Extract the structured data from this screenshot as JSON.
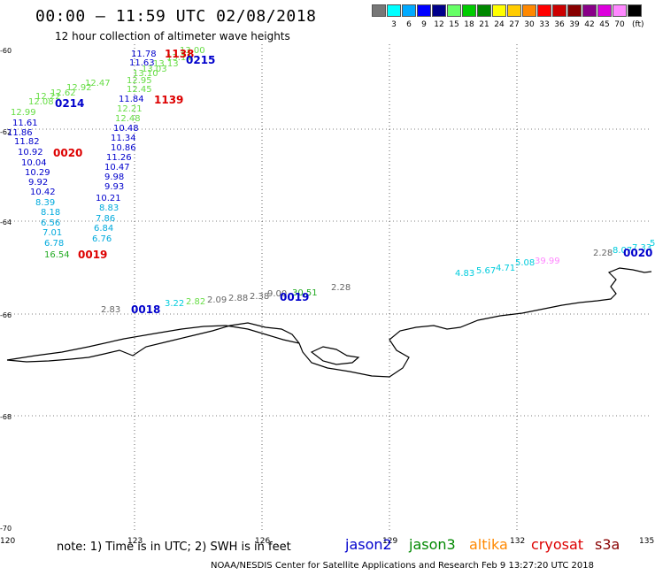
{
  "title": "00:00 – 11:59 UTC 02/08/2018",
  "subtitle": "12 hour collection of altimeter wave heights",
  "legend": {
    "swatches": [
      {
        "color": "#777777",
        "label": ""
      },
      {
        "color": "#00ffff",
        "label": "3"
      },
      {
        "color": "#00aaff",
        "label": "6"
      },
      {
        "color": "#0000ff",
        "label": "9"
      },
      {
        "color": "#00008b",
        "label": "12"
      },
      {
        "color": "#66ff66",
        "label": "15"
      },
      {
        "color": "#00cc00",
        "label": "18"
      },
      {
        "color": "#008800",
        "label": "21"
      },
      {
        "color": "#ffff00",
        "label": "24"
      },
      {
        "color": "#ffcc00",
        "label": "27"
      },
      {
        "color": "#ff8800",
        "label": "30"
      },
      {
        "color": "#ff0000",
        "label": "33"
      },
      {
        "color": "#cc0000",
        "label": "36"
      },
      {
        "color": "#880000",
        "label": "39"
      },
      {
        "color": "#880088",
        "label": "42"
      },
      {
        "color": "#dd00dd",
        "label": "45"
      },
      {
        "color": "#ff88ff",
        "label": "70"
      },
      {
        "color": "#000000",
        "label": ""
      }
    ],
    "unit": "(ft)"
  },
  "axes": {
    "y_labels": [
      "-60",
      "-62",
      "-64",
      "-66",
      "-68",
      "-70"
    ],
    "x_labels": [
      "120",
      "123",
      "126",
      "129",
      "132",
      "135"
    ]
  },
  "note": "note:  1) Time is in UTC;  2) SWH is in feet",
  "satellites": [
    {
      "name": "jason2",
      "color": "#0000cc"
    },
    {
      "name": "jason3",
      "color": "#008800"
    },
    {
      "name": "altika",
      "color": "#ff8800"
    },
    {
      "name": "cryosat",
      "color": "#dd0000"
    },
    {
      "name": "s3a",
      "color": "#880000"
    }
  ],
  "credit": "NOAA/NESDIS Center for Satellite Applications and Research    Feb  9 13:27:20 UTC 2018",
  "points": [
    {
      "t": "11.78",
      "c": "#0000cc"
    },
    {
      "t": "11.63",
      "c": "#0000cc"
    },
    {
      "t": "13.00",
      "c": "#66dd44"
    },
    {
      "t": "13.14",
      "c": "#66dd44"
    },
    {
      "t": "13.13",
      "c": "#66dd44"
    },
    {
      "t": "13.03",
      "c": "#66dd44"
    },
    {
      "t": "13.10",
      "c": "#66dd44"
    },
    {
      "t": "12.95",
      "c": "#66dd44"
    },
    {
      "t": "12.45",
      "c": "#66dd44"
    },
    {
      "t": "11.84",
      "c": "#0000cc"
    },
    {
      "t": "12.21",
      "c": "#66dd44"
    },
    {
      "t": "12.48",
      "c": "#66dd44"
    },
    {
      "t": "10.48",
      "c": "#0000cc"
    },
    {
      "t": "11.34",
      "c": "#0000cc"
    },
    {
      "t": "10.86",
      "c": "#0000cc"
    },
    {
      "t": "11.26",
      "c": "#0000cc"
    },
    {
      "t": "10.47",
      "c": "#0000cc"
    },
    {
      "t": "9.98",
      "c": "#0000cc"
    },
    {
      "t": "9.93",
      "c": "#0000cc"
    },
    {
      "t": "10.21",
      "c": "#0000cc"
    },
    {
      "t": "8.83",
      "c": "#00aadd"
    },
    {
      "t": "7.86",
      "c": "#00aadd"
    },
    {
      "t": "6.84",
      "c": "#00aadd"
    },
    {
      "t": "6.76",
      "c": "#00aadd"
    },
    {
      "t": "12.92",
      "c": "#66dd44"
    },
    {
      "t": "12.47",
      "c": "#66dd44"
    },
    {
      "t": "12.62",
      "c": "#66dd44"
    },
    {
      "t": "12.22",
      "c": "#66dd44"
    },
    {
      "t": "12.08",
      "c": "#66dd44"
    },
    {
      "t": "12.99",
      "c": "#66dd44"
    },
    {
      "t": "11.61",
      "c": "#0000cc"
    },
    {
      "t": "11.86",
      "c": "#0000cc"
    },
    {
      "t": "11.82",
      "c": "#0000cc"
    },
    {
      "t": "10.92",
      "c": "#0000cc"
    },
    {
      "t": "10.04",
      "c": "#0000cc"
    },
    {
      "t": "10.29",
      "c": "#0000cc"
    },
    {
      "t": "9.92",
      "c": "#0000cc"
    },
    {
      "t": "10.42",
      "c": "#0000cc"
    },
    {
      "t": "8.39",
      "c": "#00aadd"
    },
    {
      "t": "8.18",
      "c": "#00aadd"
    },
    {
      "t": "6.56",
      "c": "#00aadd"
    },
    {
      "t": "7.01",
      "c": "#00aadd"
    },
    {
      "t": "6.78",
      "c": "#00aadd"
    },
    {
      "t": "16.54",
      "c": "#22aa22"
    },
    {
      "t": "2.83",
      "c": "#666666"
    },
    {
      "t": "3.22",
      "c": "#00ccdd"
    },
    {
      "t": "2.82",
      "c": "#66dd44"
    },
    {
      "t": "2.09",
      "c": "#666666"
    },
    {
      "t": "2.88",
      "c": "#666666"
    },
    {
      "t": "2.38",
      "c": "#666666"
    },
    {
      "t": "9.00",
      "c": "#666666"
    },
    {
      "t": "30.51",
      "c": "#22aa22"
    },
    {
      "t": "2.28",
      "c": "#666666"
    },
    {
      "t": "4.83",
      "c": "#00ccdd"
    },
    {
      "t": "5.67",
      "c": "#00ccdd"
    },
    {
      "t": "4.71",
      "c": "#00ccdd"
    },
    {
      "t": "5.08",
      "c": "#00ccdd"
    },
    {
      "t": "39.99",
      "c": "#ff88ff"
    },
    {
      "t": "2.28",
      "c": "#666666"
    },
    {
      "t": "8.07",
      "c": "#00ccdd"
    },
    {
      "t": "7.33",
      "c": "#00ccdd"
    },
    {
      "t": "5",
      "c": "#00ccdd"
    }
  ],
  "cycles": [
    {
      "t": "1138",
      "c": "#dd0000"
    },
    {
      "t": "0215",
      "c": "#0000cc"
    },
    {
      "t": "1139",
      "c": "#dd0000"
    },
    {
      "t": "0214",
      "c": "#0000cc"
    },
    {
      "t": "0020",
      "c": "#dd0000"
    },
    {
      "t": "0019",
      "c": "#dd0000"
    },
    {
      "t": "0018",
      "c": "#0000cc"
    },
    {
      "t": "0019",
      "c": "#0000cc"
    },
    {
      "t": "0020",
      "c": "#0000cc"
    }
  ]
}
